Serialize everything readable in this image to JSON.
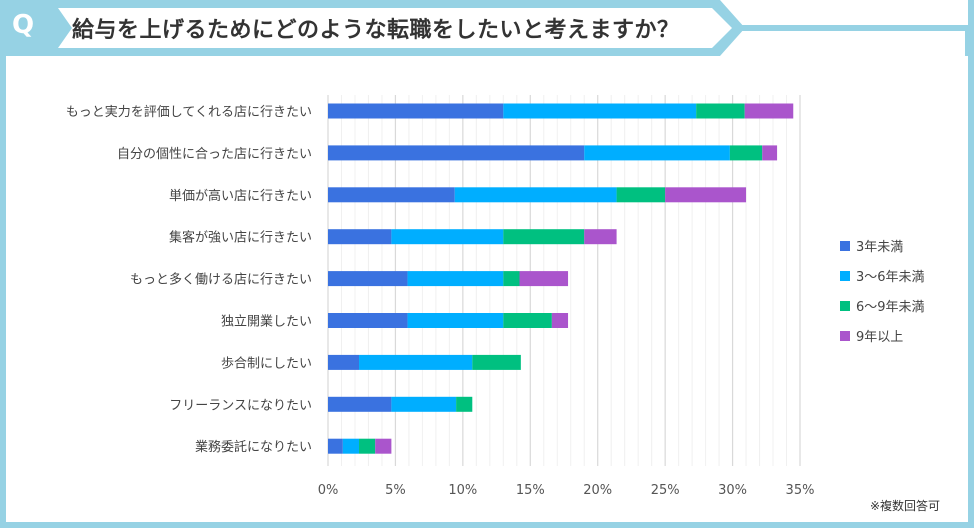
{
  "header": {
    "q_mark": "Q",
    "title": "給与を上げるためにどのような転職をしたいと考えますか？"
  },
  "note": "※複数回答可",
  "chart_data": {
    "type": "bar",
    "orientation": "horizontal",
    "stacked": true,
    "title": "給与を上げるためにどのような転職をしたいと考えますか？",
    "categories": [
      "もっと実力を評価してくれる店に行きたい",
      "自分の個性に合った店に行きたい",
      "単価が高い店に行きたい",
      "集客が強い店に行きたい",
      "もっと多く働ける店に行きたい",
      "独立開業したい",
      "歩合制にしたい",
      "フリーランスになりたい",
      "業務委託になりたい"
    ],
    "series": [
      {
        "name": "3年未満",
        "color": "#3A72E0",
        "values": [
          13.0,
          19.0,
          9.4,
          4.7,
          5.9,
          5.9,
          2.3,
          4.7,
          1.1
        ]
      },
      {
        "name": "3〜6年未満",
        "color": "#00AEFF",
        "values": [
          14.3,
          10.8,
          12.0,
          8.3,
          7.1,
          7.1,
          8.4,
          4.8,
          1.2
        ]
      },
      {
        "name": "6〜9年未満",
        "color": "#00C080",
        "values": [
          3.6,
          2.4,
          3.6,
          6.0,
          1.2,
          3.6,
          3.6,
          1.2,
          1.2
        ]
      },
      {
        "name": "9年以上",
        "color": "#AA55CC",
        "values": [
          3.6,
          1.1,
          6.0,
          2.4,
          3.6,
          1.2,
          0,
          0,
          1.2
        ]
      }
    ],
    "xlim": [
      0,
      35
    ],
    "xticks": [
      "0%",
      "5%",
      "10%",
      "15%",
      "20%",
      "25%",
      "30%",
      "35%"
    ],
    "xtick_values": [
      0,
      5,
      10,
      15,
      20,
      25,
      30,
      35
    ],
    "grid": true,
    "legend": "right"
  }
}
